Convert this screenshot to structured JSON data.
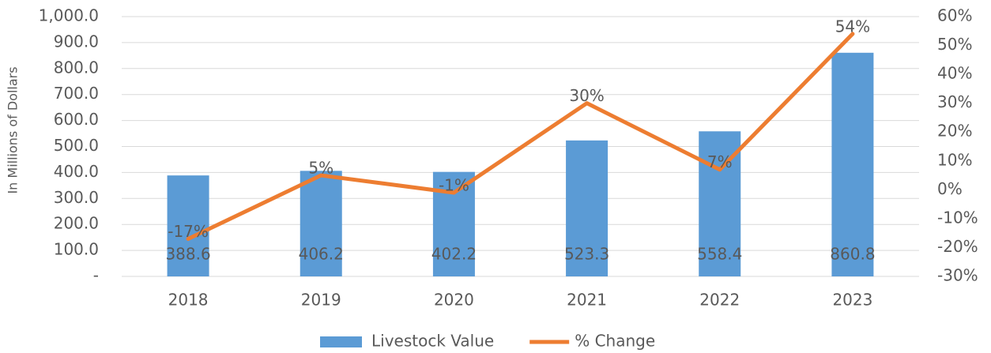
{
  "chart_data": {
    "type": "bar-line",
    "y_label": "In Millions of Dollars",
    "categories": [
      "2018",
      "2019",
      "2020",
      "2021",
      "2022",
      "2023"
    ],
    "series": [
      {
        "name": "Livestock Value",
        "type": "bar",
        "color": "#5b9bd5",
        "values": [
          388.6,
          406.2,
          402.2,
          523.3,
          558.4,
          860.8
        ]
      },
      {
        "name": "% Change",
        "type": "line",
        "axis": "y2",
        "color": "#ed7d31",
        "values": [
          -17,
          5,
          -1,
          30,
          7,
          54
        ],
        "value_labels": [
          "-17%",
          "5%",
          "-1%",
          "30%",
          "7%",
          "54%"
        ]
      }
    ],
    "ylim": [
      0,
      1000
    ],
    "yticks": [
      {
        "value": 0,
        "label": "-"
      },
      {
        "value": 100,
        "label": "100.0"
      },
      {
        "value": 200,
        "label": "200.0"
      },
      {
        "value": 300,
        "label": "300.0"
      },
      {
        "value": 400,
        "label": "400.0"
      },
      {
        "value": 500,
        "label": "500.0"
      },
      {
        "value": 600,
        "label": "600.0"
      },
      {
        "value": 700,
        "label": "700.0"
      },
      {
        "value": 800,
        "label": "800.0"
      },
      {
        "value": 900,
        "label": "900.0"
      },
      {
        "value": 1000,
        "label": "1,000.0"
      }
    ],
    "y2lim": [
      -30,
      60
    ],
    "y2ticks": [
      {
        "value": -30,
        "label": "-30%"
      },
      {
        "value": -20,
        "label": "-20%"
      },
      {
        "value": -10,
        "label": "-10%"
      },
      {
        "value": 0,
        "label": "0%"
      },
      {
        "value": 10,
        "label": "10%"
      },
      {
        "value": 20,
        "label": "20%"
      },
      {
        "value": 30,
        "label": "30%"
      },
      {
        "value": 40,
        "label": "40%"
      },
      {
        "value": 50,
        "label": "50%"
      },
      {
        "value": 60,
        "label": "60%"
      }
    ],
    "grid": true,
    "legend": "bottom"
  }
}
